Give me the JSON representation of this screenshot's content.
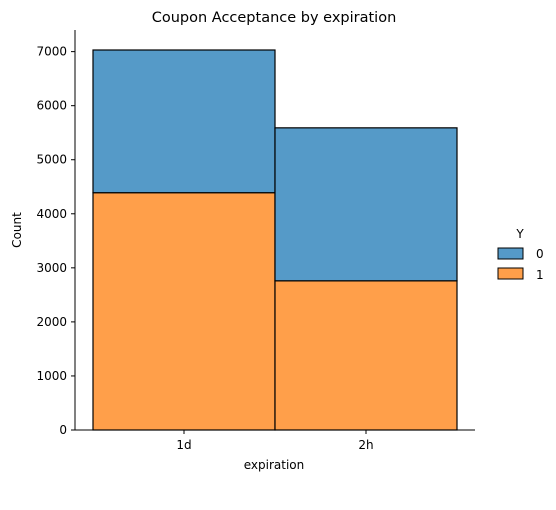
{
  "chart_data": {
    "type": "bar",
    "stacked": true,
    "title": "Coupon Acceptance by expiration",
    "xlabel": "expiration",
    "ylabel": "Count",
    "categories": [
      "1d",
      "2h"
    ],
    "series": [
      {
        "name": "1",
        "values": [
          4390,
          2760
        ],
        "color": "#ff9f4a"
      },
      {
        "name": "0",
        "values": [
          2640,
          2830
        ],
        "color": "#559ac8"
      }
    ],
    "ylim": [
      0,
      7400
    ],
    "yticks": [
      0,
      1000,
      2000,
      3000,
      4000,
      5000,
      6000,
      7000
    ],
    "legend": {
      "title": "Y",
      "entries": [
        "0",
        "1"
      ],
      "placement": "right"
    },
    "grid": false
  }
}
